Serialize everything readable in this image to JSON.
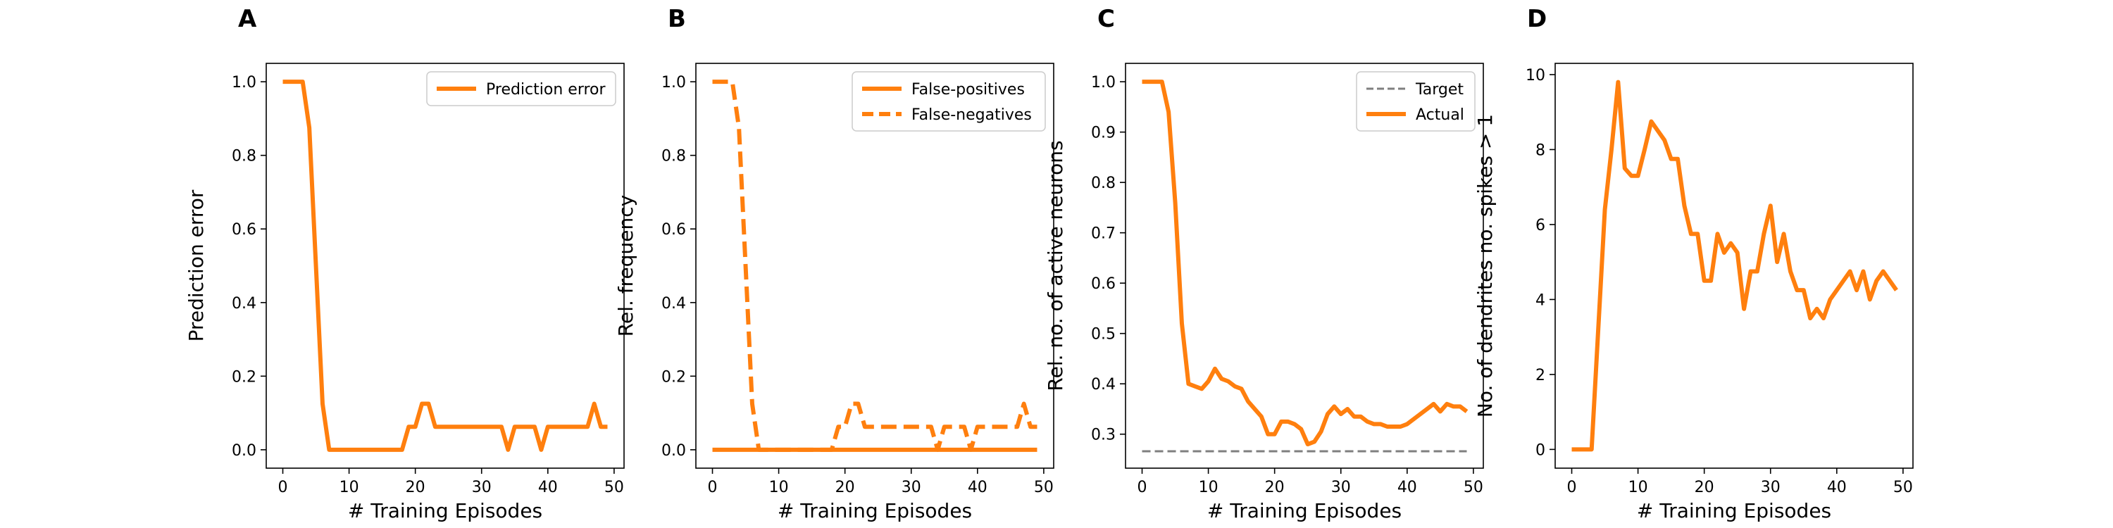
{
  "colors": {
    "accent": "#ff7f0e",
    "target": "#7f7f7f",
    "axis": "#000000"
  },
  "chart_data": [
    {
      "panel": "A",
      "type": "line",
      "xlabel": "# Training Episodes",
      "ylabel": "Prediction error",
      "xlim": [
        -2.5,
        51.5
      ],
      "ylim": [
        -0.05,
        1.05
      ],
      "xticks": [
        0,
        10,
        20,
        30,
        40,
        50
      ],
      "xtick_labels": [
        "0",
        "10",
        "20",
        "30",
        "40",
        "50"
      ],
      "yticks": [
        0,
        0.2,
        0.4,
        0.6,
        0.8,
        1.0
      ],
      "ytick_labels": [
        "0.0",
        "0.2",
        "0.4",
        "0.6",
        "0.8",
        "1.0"
      ],
      "legend_position": "top-right",
      "series": [
        {
          "name": "Prediction error",
          "style": "solid",
          "x": [
            0,
            1,
            2,
            3,
            4,
            5,
            6,
            7,
            8,
            9,
            10,
            11,
            12,
            13,
            14,
            15,
            16,
            17,
            18,
            19,
            20,
            21,
            22,
            23,
            24,
            25,
            26,
            27,
            28,
            29,
            30,
            31,
            32,
            33,
            34,
            35,
            36,
            37,
            38,
            39,
            40,
            41,
            42,
            43,
            44,
            45,
            46,
            47,
            48,
            49
          ],
          "y": [
            1.0,
            1.0,
            1.0,
            1.0,
            0.875,
            0.5,
            0.125,
            0,
            0,
            0,
            0,
            0,
            0,
            0,
            0,
            0,
            0,
            0,
            0,
            0.0625,
            0.0625,
            0.125,
            0.125,
            0.0625,
            0.0625,
            0.0625,
            0.0625,
            0.0625,
            0.0625,
            0.0625,
            0.0625,
            0.0625,
            0.0625,
            0.0625,
            0,
            0.0625,
            0.0625,
            0.0625,
            0.0625,
            0,
            0.0625,
            0.0625,
            0.0625,
            0.0625,
            0.0625,
            0.0625,
            0.0625,
            0.125,
            0.0625,
            0.0625
          ]
        }
      ]
    },
    {
      "panel": "B",
      "type": "line",
      "xlabel": "# Training Episodes",
      "ylabel": "Rel. frequency",
      "xlim": [
        -2.5,
        51.5
      ],
      "ylim": [
        -0.05,
        1.05
      ],
      "xticks": [
        0,
        10,
        20,
        30,
        40,
        50
      ],
      "xtick_labels": [
        "0",
        "10",
        "20",
        "30",
        "40",
        "50"
      ],
      "yticks": [
        0,
        0.2,
        0.4,
        0.6,
        0.8,
        1.0
      ],
      "ytick_labels": [
        "0.0",
        "0.2",
        "0.4",
        "0.6",
        "0.8",
        "1.0"
      ],
      "legend_position": "top-right",
      "series": [
        {
          "name": "False-positives",
          "style": "solid",
          "x": [
            0,
            49
          ],
          "y": [
            0,
            0
          ]
        },
        {
          "name": "False-negatives",
          "style": "dashed",
          "x": [
            0,
            1,
            2,
            3,
            4,
            5,
            6,
            7,
            8,
            9,
            10,
            11,
            12,
            13,
            14,
            15,
            16,
            17,
            18,
            19,
            20,
            21,
            22,
            23,
            24,
            25,
            26,
            27,
            28,
            29,
            30,
            31,
            32,
            33,
            34,
            35,
            36,
            37,
            38,
            39,
            40,
            41,
            42,
            43,
            44,
            45,
            46,
            47,
            48,
            49
          ],
          "y": [
            1.0,
            1.0,
            1.0,
            1.0,
            0.875,
            0.5,
            0.125,
            0,
            0,
            0,
            0,
            0,
            0,
            0,
            0,
            0,
            0,
            0,
            0,
            0.0625,
            0.0625,
            0.125,
            0.125,
            0.0625,
            0.0625,
            0.0625,
            0.0625,
            0.0625,
            0.0625,
            0.0625,
            0.0625,
            0.0625,
            0.0625,
            0.0625,
            0,
            0.0625,
            0.0625,
            0.0625,
            0.0625,
            0,
            0.0625,
            0.0625,
            0.0625,
            0.0625,
            0.0625,
            0.0625,
            0.0625,
            0.125,
            0.0625,
            0.0625
          ]
        }
      ]
    },
    {
      "panel": "C",
      "type": "line",
      "xlabel": "# Training Episodes",
      "ylabel": "Rel. no. of active neurons",
      "xlim": [
        -2.5,
        51.5
      ],
      "ylim": [
        0.2325,
        1.0365
      ],
      "xticks": [
        0,
        10,
        20,
        30,
        40,
        50
      ],
      "xtick_labels": [
        "0",
        "10",
        "20",
        "30",
        "40",
        "50"
      ],
      "yticks": [
        0.3,
        0.4,
        0.5,
        0.6,
        0.7,
        0.8,
        0.9,
        1.0
      ],
      "ytick_labels": [
        "0.3",
        "0.4",
        "0.5",
        "0.6",
        "0.7",
        "0.8",
        "0.9",
        "1.0"
      ],
      "legend_position": "top-right",
      "series": [
        {
          "name": "Target",
          "style": "dashed",
          "x": [
            0,
            49
          ],
          "y": [
            0.266,
            0.266
          ]
        },
        {
          "name": "Actual",
          "style": "solid",
          "x": [
            0,
            1,
            2,
            3,
            4,
            5,
            6,
            7,
            8,
            9,
            10,
            11,
            12,
            13,
            14,
            15,
            16,
            17,
            18,
            19,
            20,
            21,
            22,
            23,
            24,
            25,
            26,
            27,
            28,
            29,
            30,
            31,
            32,
            33,
            34,
            35,
            36,
            37,
            38,
            39,
            40,
            41,
            42,
            43,
            44,
            45,
            46,
            47,
            48,
            49
          ],
          "y": [
            1.0,
            1.0,
            1.0,
            1.0,
            0.94,
            0.76,
            0.52,
            0.4,
            0.395,
            0.39,
            0.405,
            0.43,
            0.41,
            0.405,
            0.395,
            0.39,
            0.365,
            0.35,
            0.335,
            0.3,
            0.3,
            0.325,
            0.325,
            0.32,
            0.31,
            0.28,
            0.285,
            0.305,
            0.34,
            0.355,
            0.34,
            0.35,
            0.335,
            0.335,
            0.325,
            0.32,
            0.32,
            0.315,
            0.315,
            0.315,
            0.32,
            0.33,
            0.34,
            0.35,
            0.36,
            0.345,
            0.36,
            0.355,
            0.355,
            0.345
          ]
        }
      ]
    },
    {
      "panel": "D",
      "type": "line",
      "xlabel": "# Training Episodes",
      "ylabel": "No. of dendrites no. spikes > 1",
      "xlim": [
        -2.5,
        51.5
      ],
      "ylim": [
        -0.5,
        10.3
      ],
      "xticks": [
        0,
        10,
        20,
        30,
        40,
        50
      ],
      "xtick_labels": [
        "0",
        "10",
        "20",
        "30",
        "40",
        "50"
      ],
      "yticks": [
        0,
        2,
        4,
        6,
        8,
        10
      ],
      "ytick_labels": [
        "0",
        "2",
        "4",
        "6",
        "8",
        "10"
      ],
      "legend_position": "",
      "series": [
        {
          "name": "",
          "style": "solid",
          "x": [
            0,
            1,
            2,
            3,
            4,
            5,
            6,
            7,
            8,
            9,
            10,
            11,
            12,
            13,
            14,
            15,
            16,
            17,
            18,
            19,
            20,
            21,
            22,
            23,
            24,
            25,
            26,
            27,
            28,
            29,
            30,
            31,
            32,
            33,
            34,
            35,
            36,
            37,
            38,
            39,
            40,
            41,
            42,
            43,
            44,
            45,
            46,
            47,
            48,
            49
          ],
          "y": [
            0,
            0,
            0,
            0,
            3.2,
            6.4,
            8.0,
            9.8,
            7.5,
            7.3,
            7.3,
            8.0,
            8.75,
            8.5,
            8.25,
            7.75,
            7.75,
            6.5,
            5.75,
            5.75,
            4.5,
            4.5,
            5.75,
            5.25,
            5.5,
            5.25,
            3.75,
            4.75,
            4.75,
            5.75,
            6.5,
            5.0,
            5.75,
            4.75,
            4.25,
            4.25,
            3.5,
            3.75,
            3.5,
            4.0,
            4.25,
            4.5,
            4.75,
            4.25,
            4.75,
            4.0,
            4.5,
            4.75,
            4.5,
            4.25
          ]
        }
      ]
    }
  ]
}
